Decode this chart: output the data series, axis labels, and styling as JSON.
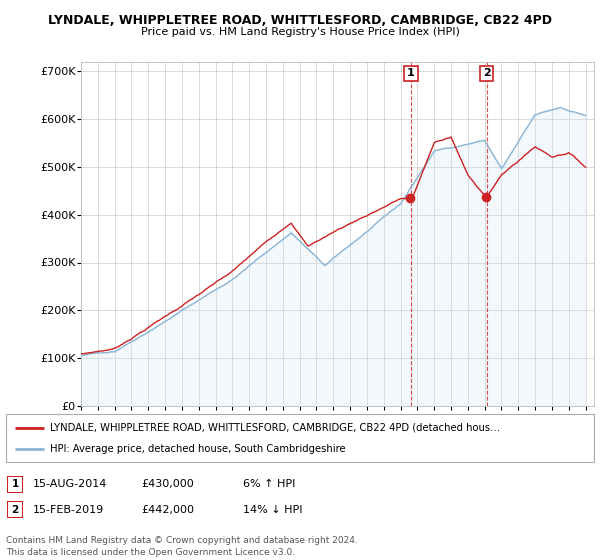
{
  "title": "LYNDALE, WHIPPLETREE ROAD, WHITTLESFORD, CAMBRIDGE, CB22 4PD",
  "subtitle": "Price paid vs. HM Land Registry's House Price Index (HPI)",
  "ylim": [
    0,
    720000
  ],
  "yticks": [
    0,
    100000,
    200000,
    300000,
    400000,
    500000,
    600000,
    700000
  ],
  "ytick_labels": [
    "£0",
    "£100K",
    "£200K",
    "£300K",
    "£400K",
    "£500K",
    "£600K",
    "£700K"
  ],
  "xlim_start": 1995,
  "xlim_end": 2025.5,
  "red_color": "#cc2222",
  "blue_color": "#8ab4d4",
  "blue_fill_color": "#d0e4f5",
  "marker1_year": 2014.62,
  "marker1_value": 430000,
  "marker2_year": 2019.12,
  "marker2_value": 442000,
  "marker1_date": "15-AUG-2014",
  "marker1_price": "£430,000",
  "marker1_hpi": "6% ↑ HPI",
  "marker2_date": "15-FEB-2019",
  "marker2_price": "£442,000",
  "marker2_hpi": "14% ↓ HPI",
  "legend_line1": "LYNDALE, WHIPPLETREE ROAD, WHITTLESFORD, CAMBRIDGE, CB22 4PD (detached hous…",
  "legend_line2": "HPI: Average price, detached house, South Cambridgeshire",
  "footnote": "Contains HM Land Registry data © Crown copyright and database right 2024.\nThis data is licensed under the Open Government Licence v3.0.",
  "background_color": "#ffffff",
  "grid_color": "#cccccc"
}
